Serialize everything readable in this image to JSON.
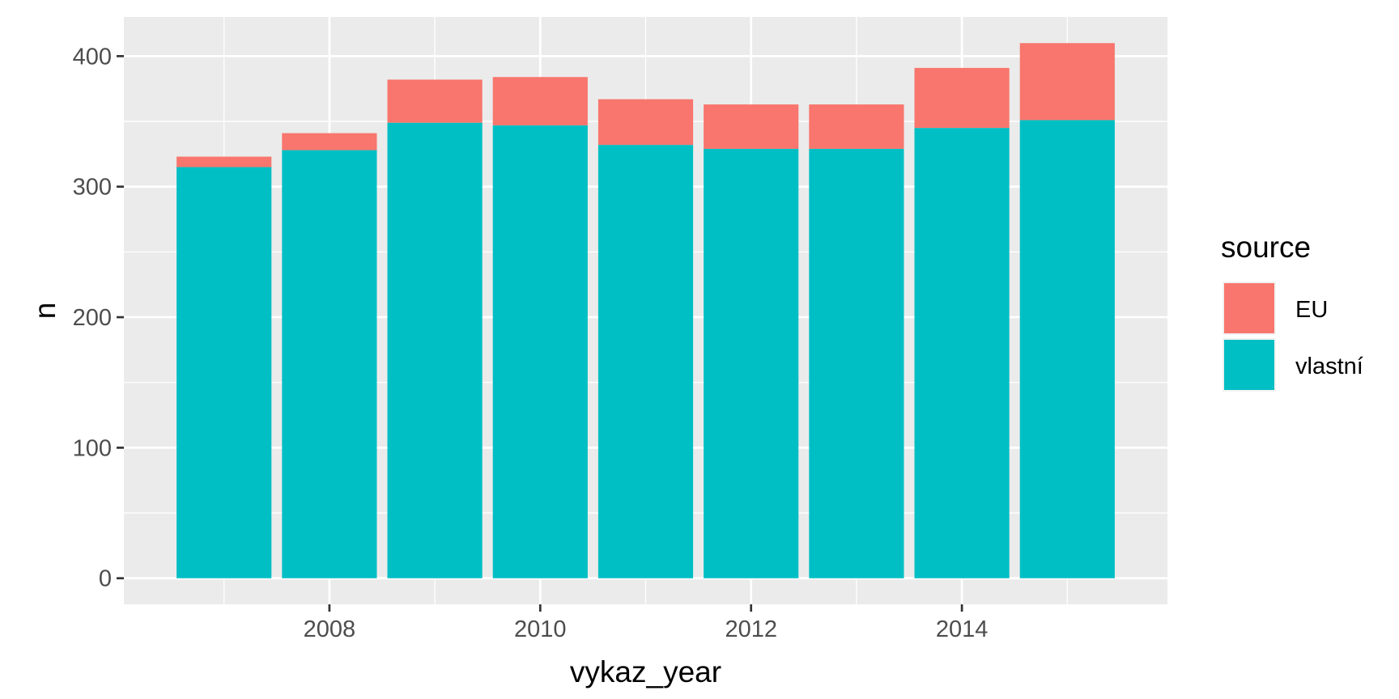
{
  "chart_data": {
    "type": "bar",
    "stacked": true,
    "xlabel": "vykaz_year",
    "ylabel": "n",
    "x": [
      2007,
      2008,
      2009,
      2010,
      2011,
      2012,
      2013,
      2014,
      2015
    ],
    "xlim": [
      2006.05,
      2015.95
    ],
    "xticks": [
      2008,
      2010,
      2012,
      2014
    ],
    "xtick_labels": [
      "2008",
      "2010",
      "2012",
      "2014"
    ],
    "ylim": [
      -20,
      430
    ],
    "yticks": [
      0,
      100,
      200,
      300,
      400
    ],
    "ytick_labels": [
      "0",
      "100",
      "200",
      "300",
      "400"
    ],
    "grid": true,
    "legend": {
      "title": "source",
      "position": "right"
    },
    "series": [
      {
        "name": "EU",
        "color": "#F8766D",
        "values": [
          8,
          13,
          33,
          37,
          35,
          34,
          34,
          46,
          59
        ]
      },
      {
        "name": "vlastní",
        "color": "#00BFC4",
        "values": [
          315,
          328,
          349,
          347,
          332,
          329,
          329,
          345,
          351
        ]
      }
    ],
    "stack_order_bottom_to_top": [
      "vlastní",
      "EU"
    ]
  }
}
